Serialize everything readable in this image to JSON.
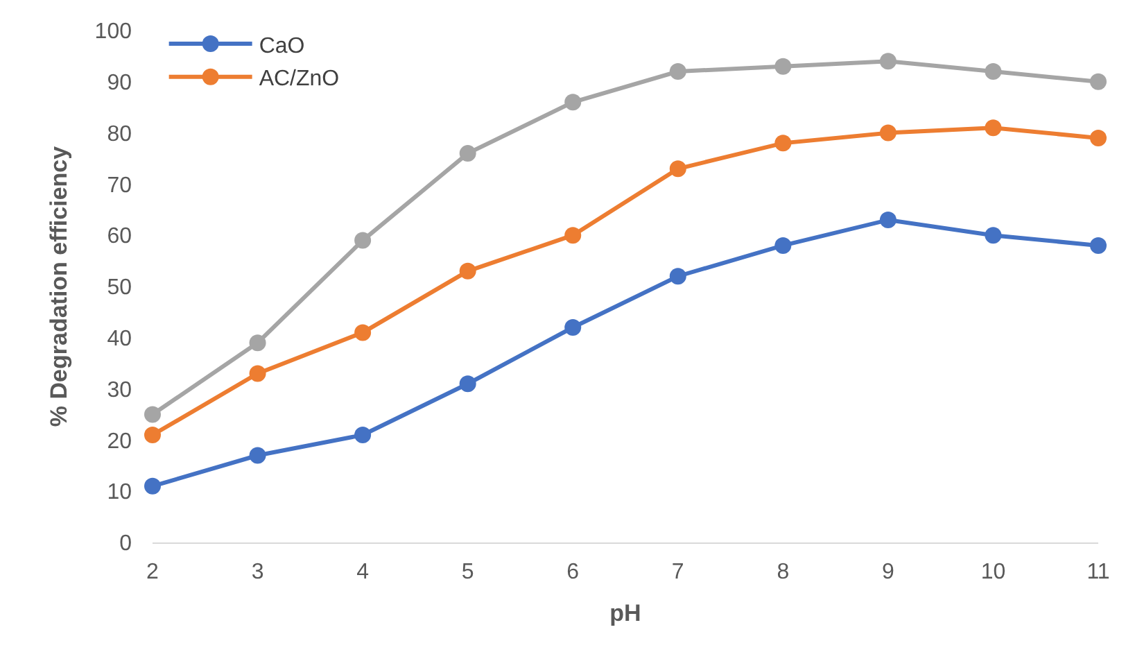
{
  "chart_data": {
    "type": "line",
    "xlabel": "pH",
    "ylabel": "% Degradation efficiency",
    "x": [
      2,
      3,
      4,
      5,
      6,
      7,
      8,
      9,
      10,
      11
    ],
    "series": [
      {
        "name": "CaO",
        "color": "#4472c4",
        "values": [
          11,
          17,
          21,
          31,
          42,
          52,
          58,
          63,
          60,
          58
        ]
      },
      {
        "name": "AC/ZnO",
        "color": "#ed7d31",
        "values": [
          21,
          33,
          41,
          53,
          60,
          73,
          78,
          80,
          81,
          79
        ]
      },
      {
        "color": "#a5a5a5",
        "values": [
          25,
          39,
          59,
          76,
          86,
          92,
          93,
          94,
          92,
          90
        ]
      }
    ],
    "xlim": [
      2,
      11
    ],
    "xticks": [
      2,
      3,
      4,
      5,
      6,
      7,
      8,
      9,
      10,
      11
    ],
    "ylim": [
      0,
      100
    ],
    "yticks": [
      0,
      10,
      20,
      30,
      40,
      50,
      60,
      70,
      80,
      90,
      100
    ],
    "marker": "circle",
    "line_style": "solid",
    "grid": false,
    "legend": "top left"
  }
}
